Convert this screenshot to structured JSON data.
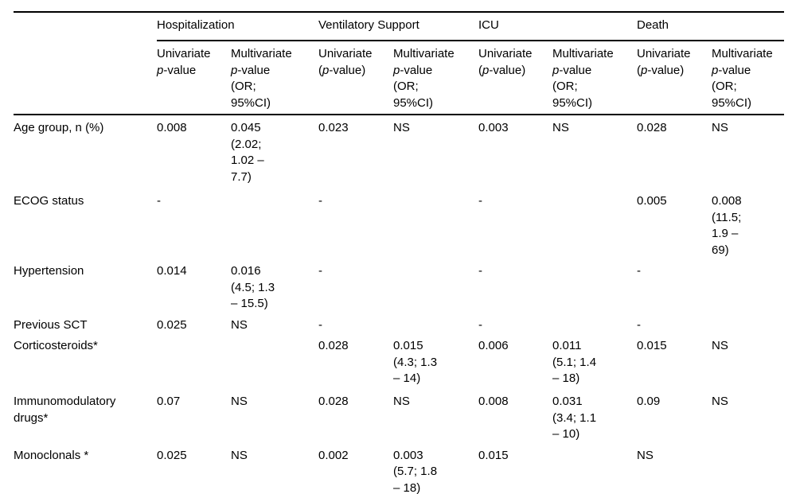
{
  "table": {
    "corner_label": "",
    "groups": [
      {
        "label": "Hospitalization"
      },
      {
        "label": "Ventilatory Support"
      },
      {
        "label": "ICU"
      },
      {
        "label": "Death"
      }
    ],
    "subheaders": [
      "Univariate\n{p}-value",
      "Multivariate\n{p}-value\n(OR;\n95%CI)",
      "Univariate\n({p}-value)",
      "Multivariate\n{p}-value\n(OR;\n95%CI)",
      "Univariate\n({p}-value)",
      "Multivariate\n{p}-value\n(OR;\n95%CI)",
      "Univariate\n({p}-value)",
      "Multivariate\n{p}-value\n(OR;\n95%CI)"
    ],
    "rows": [
      {
        "label": "Age group, n (%)",
        "cells": [
          "0.008",
          "0.045\n(2.02;\n1.02 –\n7.7)",
          "0.023",
          "NS",
          "0.003",
          "NS",
          "0.028",
          "NS"
        ]
      },
      {
        "label": "ECOG status",
        "cells": [
          "-",
          "",
          "-",
          "",
          "-",
          "",
          "0.005",
          "0.008\n(11.5;\n1.9 –\n69)"
        ]
      },
      {
        "label": "Hypertension",
        "cells": [
          "0.014",
          "0.016\n(4.5; 1.3\n– 15.5)",
          "-",
          "",
          "-",
          "",
          "-",
          ""
        ]
      },
      {
        "label": "Previous SCT",
        "cells": [
          "0.025",
          "NS",
          "-",
          "",
          "-",
          "",
          "-",
          ""
        ]
      },
      {
        "label": "Corticosteroids*",
        "cells": [
          "",
          "",
          "0.028",
          "0.015\n(4.3; 1.3\n– 14)",
          "0.006",
          "0.011\n(5.1; 1.4\n– 18)",
          "0.015",
          "NS"
        ]
      },
      {
        "label": "Immunomodulatory drugs*",
        "cells": [
          "0.07",
          "NS",
          "0.028",
          "NS",
          "0.008",
          "0.031\n(3.4; 1.1\n– 10)",
          "0.09",
          "NS"
        ]
      },
      {
        "label": "Monoclonals *",
        "cells": [
          "0.025",
          "NS",
          "0.002",
          "0.003\n(5.7; 1.8\n– 18)",
          "0.015",
          "",
          "NS",
          ""
        ]
      }
    ]
  }
}
